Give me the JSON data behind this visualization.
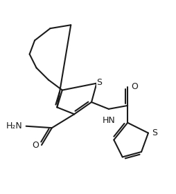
{
  "bg_color": "#ffffff",
  "line_color": "#1a1a1a",
  "line_width": 1.5,
  "dbo": 0.012,
  "fig_size": [
    2.54,
    2.81
  ],
  "dpi": 100,
  "font_size": 9.0,
  "xlim": [
    0.0,
    1.0
  ],
  "ylim": [
    0.0,
    1.0
  ]
}
